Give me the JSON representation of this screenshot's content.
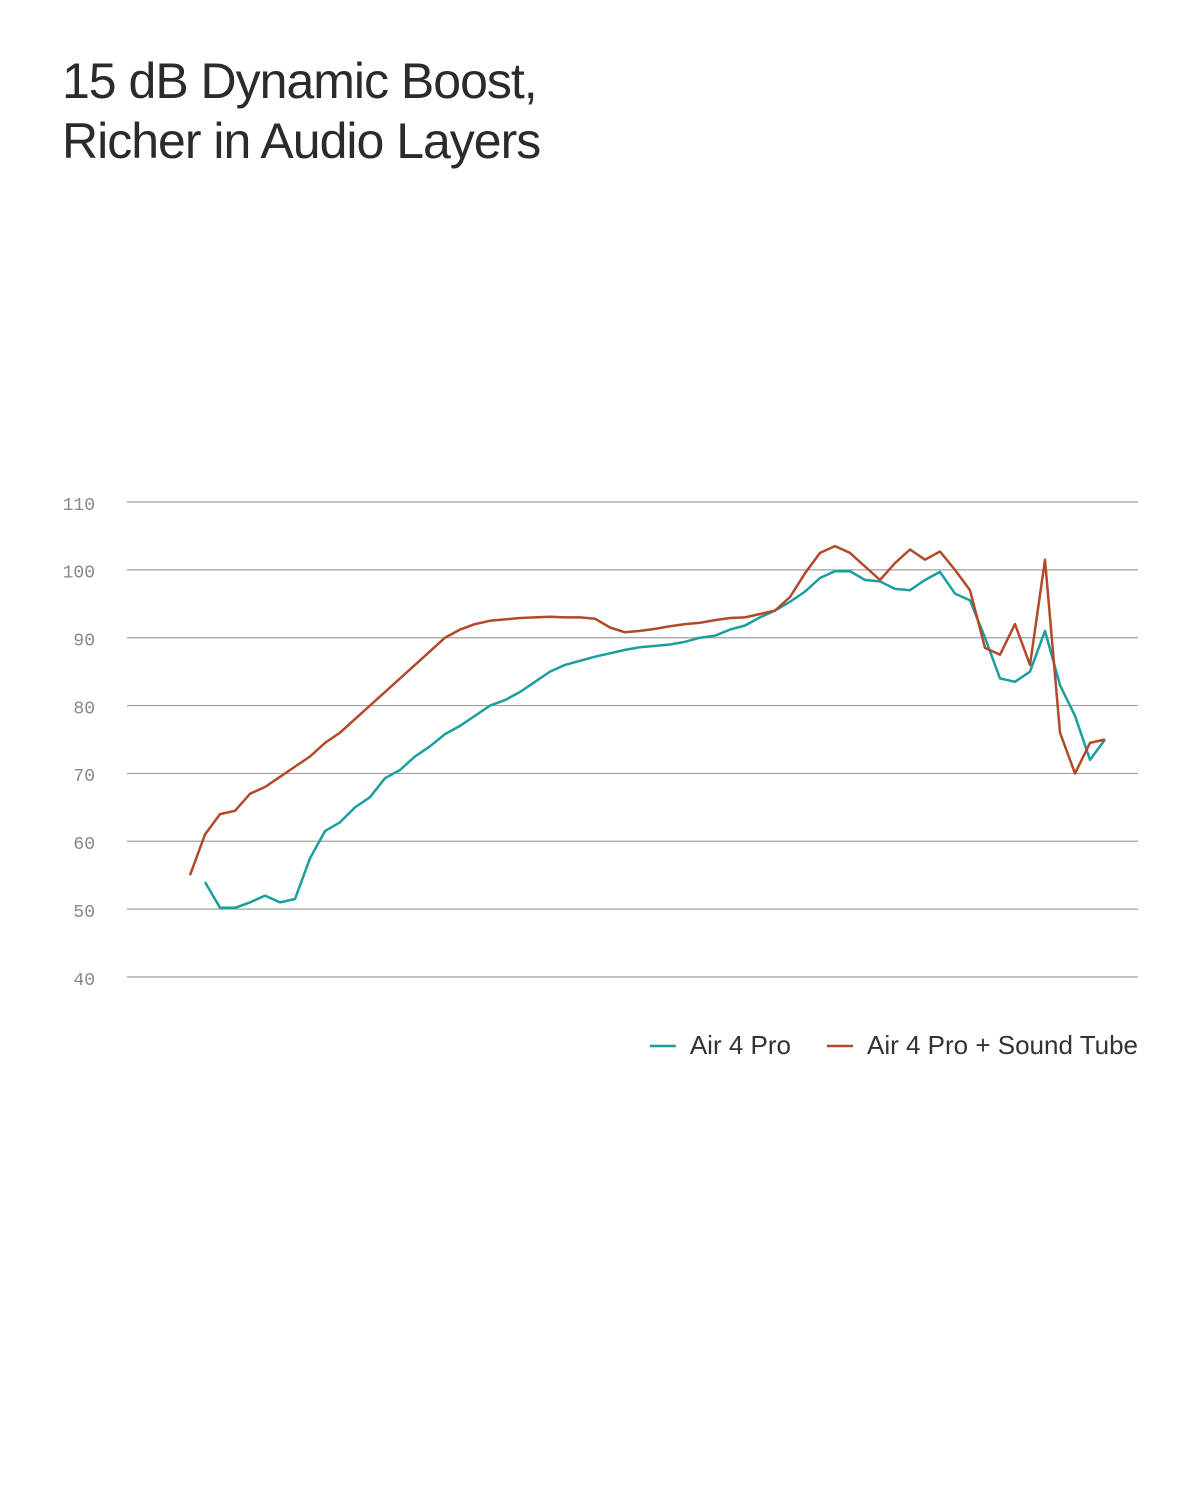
{
  "chart_data": {
    "type": "line",
    "title": [
      "15 dB Dynamic Boost,",
      "Richer in Audio Layers"
    ],
    "categories": [
      null,
      null,
      null,
      null,
      null,
      null,
      null,
      null,
      null,
      null,
      null,
      null,
      null,
      null,
      null,
      null,
      null,
      null,
      null,
      null,
      null,
      null,
      null,
      null,
      null,
      null,
      null,
      null,
      null,
      null,
      null,
      null,
      null,
      null,
      null,
      null,
      null,
      null,
      null,
      null,
      null,
      null,
      null,
      null,
      null,
      null,
      null,
      null,
      null,
      null,
      null,
      null,
      null,
      null,
      null,
      null,
      null,
      null,
      null,
      null,
      null,
      null
    ],
    "series": [
      {
        "name": "Air 4 Pro",
        "color": "#1a9e9e",
        "values": [
          null,
          54,
          50.2,
          50.2,
          51,
          52,
          51,
          51.5,
          57.5,
          61.5,
          62.8,
          65,
          66.5,
          69.3,
          70.5,
          72.5,
          74,
          75.8,
          77,
          78.5,
          80,
          80.8,
          82,
          83.5,
          85,
          86,
          86.6,
          87.2,
          87.7,
          88.2,
          88.6,
          88.8,
          89,
          89.4,
          90,
          90.3,
          91.2,
          91.8,
          93,
          94,
          95.3,
          96.8,
          98.8,
          99.8,
          99.8,
          98.5,
          98.3,
          97.2,
          97,
          98.5,
          99.7,
          96.5,
          95.5,
          90,
          84,
          83.5,
          85,
          91,
          83,
          78.5,
          72,
          75
        ]
      },
      {
        "name": "Air 4 Pro + Sound Tube",
        "color": "#b04a2a",
        "values": [
          55,
          61,
          64,
          64.5,
          67,
          68,
          69.5,
          71,
          72.5,
          74.5,
          76,
          78,
          80,
          82,
          84,
          86,
          88,
          90,
          91.2,
          92,
          92.5,
          92.7,
          92.9,
          93,
          93.1,
          93,
          93,
          92.8,
          91.5,
          90.8,
          91,
          91.3,
          91.7,
          92,
          92.2,
          92.6,
          92.9,
          93,
          93.5,
          94,
          96,
          99.5,
          102.5,
          103.5,
          102.5,
          100.5,
          98.5,
          101,
          103,
          101.5,
          102.7,
          100,
          97,
          88.5,
          87.5,
          92,
          86,
          101.5,
          76,
          70,
          74.5,
          75
        ]
      }
    ],
    "ylim": [
      40,
      110
    ],
    "yticks": [
      40,
      50,
      60,
      70,
      80,
      90,
      100,
      110
    ],
    "grid": true
  }
}
